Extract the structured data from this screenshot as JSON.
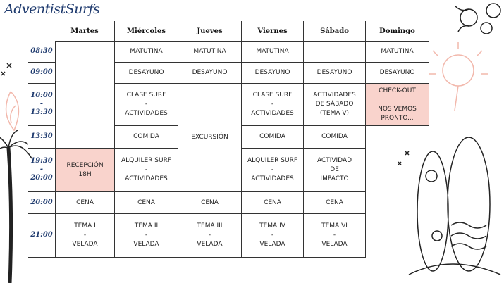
{
  "header": {
    "logo": "AdventistSurfs"
  },
  "days": [
    "Martes",
    "Miércoles",
    "Jueves",
    "Viernes",
    "Sábado",
    "Domingo"
  ],
  "times": [
    [
      "08:30"
    ],
    [
      "09:00"
    ],
    [
      "10:00",
      "-",
      "13:30"
    ],
    [
      "13:30"
    ],
    [
      "19:30",
      "-",
      "20:00"
    ],
    [
      "20:00"
    ],
    [
      "21:00"
    ]
  ],
  "cells": [
    [
      [
        "RECEPCIÓN",
        "18H"
      ],
      [
        "CENA"
      ],
      [
        "TEMA I",
        "-",
        "VELADA"
      ]
    ],
    [
      [
        "MATUTINA"
      ],
      [
        "DESAYUNO"
      ],
      [
        "CLASE SURF",
        "-",
        "ACTIVIDADES"
      ],
      [
        "COMIDA"
      ],
      [
        "ALQUILER SURF",
        "-",
        "ACTIVIDADES"
      ],
      [
        "CENA"
      ],
      [
        "TEMA II",
        "-",
        "VELADA"
      ]
    ],
    [
      [
        "MATUTINA"
      ],
      [
        "DESAYUNO"
      ],
      [
        "EXCURSIÓN"
      ],
      [
        "CENA"
      ],
      [
        "TEMA III",
        "-",
        "VELADA"
      ]
    ],
    [
      [
        "MATUTINA"
      ],
      [
        "DESAYUNO"
      ],
      [
        "CLASE SURF",
        "-",
        "ACTIVIDADES"
      ],
      [
        "COMIDA"
      ],
      [
        "ALQUILER SURF",
        "-",
        "ACTIVIDADES"
      ],
      [
        "CENA"
      ],
      [
        "TEMA IV",
        "-",
        "VELADA"
      ]
    ],
    [
      [
        "DESAYUNO"
      ],
      [
        "ACTIVIDADES",
        "DE SÁBADO",
        "(TEMA V)"
      ],
      [
        "COMIDA"
      ],
      [
        "ACTIVIDAD",
        "DE",
        "IMPACTO"
      ],
      [
        "CENA"
      ],
      [
        "TEMA VI",
        "-",
        "VELADA"
      ]
    ],
    [
      [
        "MATUTINA"
      ],
      [
        "DESAYUNO"
      ],
      [
        "CHECK-OUT",
        "",
        "NOS VEMOS",
        "PRONTO..."
      ]
    ]
  ]
}
